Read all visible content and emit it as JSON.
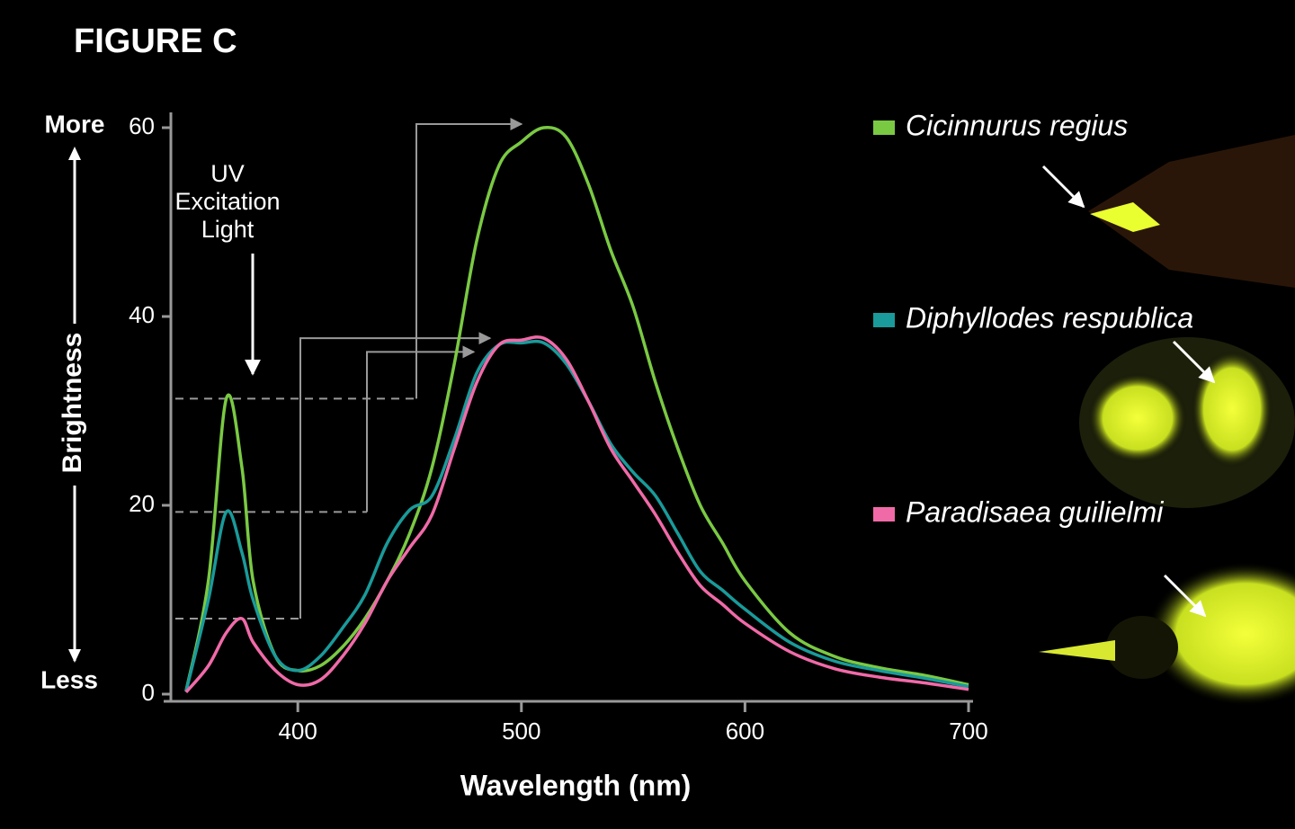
{
  "chart_data": {
    "type": "line",
    "title": "FIGURE C",
    "xlabel": "Wavelength (nm)",
    "ylabel": "Brightness",
    "y_top_label": "More",
    "y_bottom_label": "Less",
    "annotation": [
      "UV",
      "Excitation",
      "Light"
    ],
    "x": [
      350,
      360,
      368,
      375,
      380,
      390,
      400,
      410,
      420,
      430,
      440,
      450,
      460,
      470,
      480,
      490,
      500,
      510,
      520,
      530,
      540,
      550,
      560,
      570,
      580,
      590,
      600,
      620,
      640,
      660,
      680,
      700
    ],
    "series": [
      {
        "name": "Cicinnurus regius",
        "color": "#7ac943",
        "values": [
          0.3,
          12,
          31.3,
          24,
          12,
          4,
          2.5,
          3,
          5,
          8,
          12,
          17,
          24,
          35,
          48,
          56,
          58.5,
          60,
          59,
          54,
          47,
          41,
          33,
          26,
          20,
          16,
          12,
          6.5,
          4,
          2.8,
          2,
          1
        ]
      },
      {
        "name": "Diphyllodes respublica",
        "color": "#1a9a9a",
        "values": [
          0.3,
          10,
          19.3,
          15,
          10,
          4,
          2.5,
          4,
          7,
          10.5,
          16,
          19.5,
          21,
          27,
          34,
          37,
          37.2,
          37.2,
          35,
          31,
          26.5,
          23.5,
          21,
          17,
          13,
          11,
          9,
          5.5,
          3.5,
          2.5,
          1.7,
          0.8
        ]
      },
      {
        "name": "Paradisaea guilielmi",
        "color": "#f06aa8",
        "values": [
          0.2,
          3,
          6.5,
          8,
          5.5,
          2.5,
          1,
          1.5,
          4,
          7.5,
          12,
          15.5,
          19,
          26,
          33,
          37,
          37.5,
          37.7,
          35.5,
          31,
          26,
          22.5,
          19,
          15,
          11.5,
          9.5,
          7.5,
          4.5,
          2.7,
          1.8,
          1.2,
          0.5
        ]
      }
    ],
    "xlim": [
      340,
      700
    ],
    "xticks": [
      400,
      500,
      600,
      700
    ],
    "ylim": [
      0,
      60
    ],
    "yticks": [
      0,
      20,
      40,
      60
    ]
  }
}
